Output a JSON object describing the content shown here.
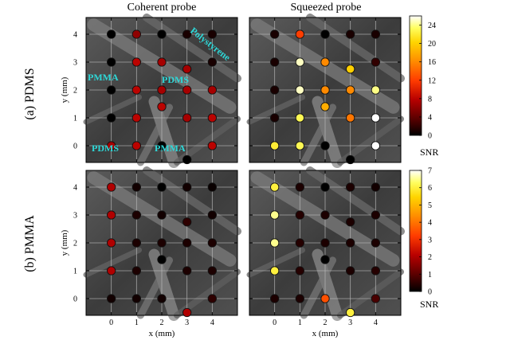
{
  "column_titles": [
    "Coherent probe",
    "Squeezed probe"
  ],
  "row_labels": [
    "(a) PDMS",
    "(b) PMMA"
  ],
  "xlabel": "x (mm)",
  "ylabel": "y (mm)",
  "colorbar_label": "SNR",
  "material_labels": {
    "pmma_left": "PMMA",
    "pdms_center": "PDMS",
    "pdms_bottom": "PDMS",
    "pmma_bottom": "PMMA",
    "polystyrene": "Polystyrene"
  },
  "colors": {
    "material_label": "#2ed8d8",
    "colormap": [
      "#000000",
      "#5a0000",
      "#b80000",
      "#ff3c00",
      "#ff8c00",
      "#ffd400",
      "#ffff60",
      "#ffffff"
    ]
  },
  "chart_data": [
    {
      "type": "scatter",
      "title": "Coherent probe",
      "row": "(a) PDMS",
      "xlabel": "x (mm)",
      "ylabel": "y (mm)",
      "xticks": [
        0,
        1,
        2,
        3,
        4
      ],
      "yticks": [
        0,
        1,
        2,
        3,
        4
      ],
      "xlim": [
        -1,
        5
      ],
      "ylim": [
        -0.6,
        4.6
      ],
      "color_scale": "SNR",
      "clim": [
        0,
        26
      ],
      "points": [
        {
          "x": 0,
          "y": 4,
          "snr": 0
        },
        {
          "x": 1,
          "y": 4,
          "snr": 6
        },
        {
          "x": 2,
          "y": 4,
          "snr": 0
        },
        {
          "x": 3,
          "y": 4,
          "snr": 1
        },
        {
          "x": 4,
          "y": 4,
          "snr": 1
        },
        {
          "x": 0,
          "y": 3,
          "snr": 0
        },
        {
          "x": 1,
          "y": 3,
          "snr": 8
        },
        {
          "x": 2,
          "y": 3,
          "snr": 7
        },
        {
          "x": 3,
          "y": 2.75,
          "snr": 7
        },
        {
          "x": 4,
          "y": 3,
          "snr": 1
        },
        {
          "x": 0,
          "y": 2,
          "snr": 0
        },
        {
          "x": 1,
          "y": 2,
          "snr": 8
        },
        {
          "x": 2,
          "y": 2,
          "snr": 7
        },
        {
          "x": 3,
          "y": 2,
          "snr": 7
        },
        {
          "x": 4,
          "y": 2,
          "snr": 7
        },
        {
          "x": 0,
          "y": 1,
          "snr": 0
        },
        {
          "x": 1,
          "y": 1,
          "snr": 8
        },
        {
          "x": 2,
          "y": 1.4,
          "snr": 8
        },
        {
          "x": 3,
          "y": 1,
          "snr": 7
        },
        {
          "x": 4,
          "y": 1,
          "snr": 8
        },
        {
          "x": 0,
          "y": 0,
          "snr": 7
        },
        {
          "x": 1,
          "y": 0,
          "snr": 8
        },
        {
          "x": 2,
          "y": 0,
          "snr": 0
        },
        {
          "x": 3,
          "y": -0.5,
          "snr": 0
        },
        {
          "x": 4,
          "y": 0,
          "snr": 8
        }
      ]
    },
    {
      "type": "scatter",
      "title": "Squeezed probe",
      "row": "(a) PDMS",
      "xlabel": "x (mm)",
      "xticks": [
        0,
        1,
        2,
        3,
        4
      ],
      "yticks": [
        0,
        1,
        2,
        3,
        4
      ],
      "xlim": [
        -1,
        5
      ],
      "ylim": [
        -0.6,
        4.6
      ],
      "color_scale": "SNR",
      "clim": [
        0,
        26
      ],
      "colorbar_ticks": [
        0,
        4,
        8,
        12,
        16,
        20,
        24
      ],
      "points": [
        {
          "x": 0,
          "y": 4,
          "snr": 1
        },
        {
          "x": 1,
          "y": 4,
          "snr": 12
        },
        {
          "x": 2,
          "y": 4,
          "snr": 0
        },
        {
          "x": 3,
          "y": 4,
          "snr": 1
        },
        {
          "x": 4,
          "y": 4,
          "snr": 1
        },
        {
          "x": 0,
          "y": 3,
          "snr": 1
        },
        {
          "x": 1,
          "y": 3,
          "snr": 25
        },
        {
          "x": 2,
          "y": 3,
          "snr": 16
        },
        {
          "x": 3,
          "y": 2.75,
          "snr": 20
        },
        {
          "x": 4,
          "y": 3,
          "snr": 2
        },
        {
          "x": 0,
          "y": 2,
          "snr": 1
        },
        {
          "x": 1,
          "y": 2,
          "snr": 25
        },
        {
          "x": 2,
          "y": 2,
          "snr": 16
        },
        {
          "x": 3,
          "y": 2,
          "snr": 16
        },
        {
          "x": 4,
          "y": 2,
          "snr": 24
        },
        {
          "x": 0,
          "y": 1,
          "snr": 1
        },
        {
          "x": 1,
          "y": 1,
          "snr": 23
        },
        {
          "x": 2,
          "y": 1.4,
          "snr": 18
        },
        {
          "x": 3,
          "y": 1,
          "snr": 15
        },
        {
          "x": 4,
          "y": 1,
          "snr": 26
        },
        {
          "x": 0,
          "y": 0,
          "snr": 22
        },
        {
          "x": 1,
          "y": 0,
          "snr": 23
        },
        {
          "x": 2,
          "y": 0,
          "snr": 0
        },
        {
          "x": 3,
          "y": -0.5,
          "snr": 0
        },
        {
          "x": 4,
          "y": 0,
          "snr": 26
        }
      ]
    },
    {
      "type": "scatter",
      "title": "Coherent probe",
      "row": "(b) PMMA",
      "xlabel": "x (mm)",
      "ylabel": "y (mm)",
      "xticks": [
        0,
        1,
        2,
        3,
        4
      ],
      "yticks": [
        0,
        1,
        2,
        3,
        4
      ],
      "xlim": [
        -1,
        5
      ],
      "ylim": [
        -0.6,
        4.6
      ],
      "color_scale": "SNR",
      "clim": [
        0,
        7
      ],
      "points": [
        {
          "x": 0,
          "y": 4,
          "snr": 2
        },
        {
          "x": 1,
          "y": 4,
          "snr": 0.2
        },
        {
          "x": 2,
          "y": 4,
          "snr": 0
        },
        {
          "x": 3,
          "y": 4,
          "snr": 0.2
        },
        {
          "x": 4,
          "y": 4,
          "snr": 0.1
        },
        {
          "x": 0,
          "y": 3,
          "snr": 2
        },
        {
          "x": 1,
          "y": 3,
          "snr": 0.3
        },
        {
          "x": 2,
          "y": 3,
          "snr": 0.2
        },
        {
          "x": 3,
          "y": 2.75,
          "snr": 0.5
        },
        {
          "x": 4,
          "y": 3,
          "snr": 0.2
        },
        {
          "x": 0,
          "y": 2,
          "snr": 2
        },
        {
          "x": 1,
          "y": 2,
          "snr": 0.3
        },
        {
          "x": 2,
          "y": 2,
          "snr": 0.3
        },
        {
          "x": 3,
          "y": 2,
          "snr": 0.3
        },
        {
          "x": 4,
          "y": 2,
          "snr": 0.3
        },
        {
          "x": 0,
          "y": 1,
          "snr": 2
        },
        {
          "x": 1,
          "y": 1,
          "snr": 0.3
        },
        {
          "x": 2,
          "y": 1.4,
          "snr": 0
        },
        {
          "x": 3,
          "y": 1,
          "snr": 0.3
        },
        {
          "x": 4,
          "y": 1,
          "snr": 0.3
        },
        {
          "x": 0,
          "y": 0,
          "snr": 0.2
        },
        {
          "x": 1,
          "y": 0,
          "snr": 0.2
        },
        {
          "x": 2,
          "y": 0,
          "snr": 0.2
        },
        {
          "x": 3,
          "y": -0.5,
          "snr": 2
        },
        {
          "x": 4,
          "y": 0,
          "snr": 0.5
        }
      ]
    },
    {
      "type": "scatter",
      "title": "Squeezed probe",
      "row": "(b) PMMA",
      "xlabel": "x (mm)",
      "xticks": [
        0,
        1,
        2,
        3,
        4
      ],
      "yticks": [
        0,
        1,
        2,
        3,
        4
      ],
      "xlim": [
        -1,
        5
      ],
      "ylim": [
        -0.6,
        4.6
      ],
      "color_scale": "SNR",
      "clim": [
        0,
        7
      ],
      "colorbar_ticks": [
        0,
        1,
        2,
        3,
        4,
        5,
        6,
        7
      ],
      "points": [
        {
          "x": 0,
          "y": 4,
          "snr": 6
        },
        {
          "x": 1,
          "y": 4,
          "snr": 0.3
        },
        {
          "x": 2,
          "y": 4,
          "snr": 0
        },
        {
          "x": 3,
          "y": 4,
          "snr": 0.3
        },
        {
          "x": 4,
          "y": 4,
          "snr": 0.2
        },
        {
          "x": 0,
          "y": 3,
          "snr": 6.5
        },
        {
          "x": 1,
          "y": 3,
          "snr": 0.4
        },
        {
          "x": 2,
          "y": 3,
          "snr": 0.3
        },
        {
          "x": 3,
          "y": 2.75,
          "snr": 0.3
        },
        {
          "x": 4,
          "y": 3,
          "snr": 0.3
        },
        {
          "x": 0,
          "y": 2,
          "snr": 6.5
        },
        {
          "x": 1,
          "y": 2,
          "snr": 0.4
        },
        {
          "x": 2,
          "y": 2,
          "snr": 0.3
        },
        {
          "x": 3,
          "y": 2,
          "snr": 0.3
        },
        {
          "x": 4,
          "y": 2,
          "snr": 0.3
        },
        {
          "x": 0,
          "y": 1,
          "snr": 6
        },
        {
          "x": 1,
          "y": 1,
          "snr": 0.4
        },
        {
          "x": 2,
          "y": 1.4,
          "snr": 0
        },
        {
          "x": 3,
          "y": 1,
          "snr": 0.3
        },
        {
          "x": 4,
          "y": 1,
          "snr": 0.4
        },
        {
          "x": 0,
          "y": 0,
          "snr": 0.3
        },
        {
          "x": 1,
          "y": 0,
          "snr": 0.3
        },
        {
          "x": 2,
          "y": 0,
          "snr": 3.5
        },
        {
          "x": 3,
          "y": -0.5,
          "snr": 6
        },
        {
          "x": 4,
          "y": 0,
          "snr": 0.8
        }
      ]
    }
  ]
}
